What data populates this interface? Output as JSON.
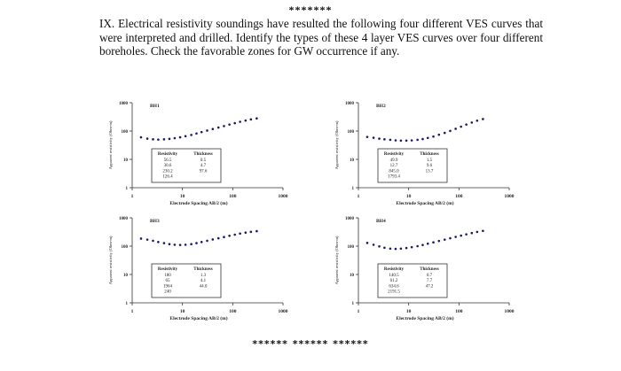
{
  "header": {
    "stars": "*******"
  },
  "question": {
    "text": "IX. Electrical resistivity soundings have resulted the following four different VES curves that were interpreted and drilled. Identify the types of these 4 layer VES curves over four different boreholes. Check the favorable zones for GW occurrence if any."
  },
  "footer": {
    "stars": "******   ******   ******"
  },
  "chart_data": [
    {
      "type": "scatter",
      "title": "BH1",
      "xlabel": "Electrode Spacing AB/2 (m)",
      "ylabel": "Apparent resistivity (Ohm-m)",
      "x_scale": "log",
      "y_scale": "log",
      "xlim": [
        1,
        1000
      ],
      "ylim": [
        1,
        1000
      ],
      "x_ticks": [
        "1",
        "10",
        "100",
        "1000"
      ],
      "y_ticks": [
        "1000",
        "100",
        "10",
        "1"
      ],
      "x": [
        1.5,
        2,
        2.6,
        3.3,
        4.3,
        5.5,
        7,
        9,
        11.5,
        15,
        19,
        24,
        31,
        40,
        52,
        67,
        86,
        110,
        140,
        180,
        230,
        300
      ],
      "y": [
        60,
        54,
        51,
        50,
        51,
        53,
        56,
        60,
        66,
        73,
        82,
        92,
        104,
        118,
        133,
        150,
        170,
        190,
        212,
        235,
        258,
        280
      ],
      "table": {
        "headers": [
          "Resistivity",
          "Thickness"
        ],
        "rows": [
          [
            "56.5",
            "0.5"
          ],
          [
            "30.6",
            "4.7"
          ],
          [
            "230.2",
            "97.6"
          ],
          [
            "126.4",
            ""
          ]
        ]
      }
    },
    {
      "type": "scatter",
      "title": "BH2",
      "xlabel": "Electrode Spacing AB/2 (m)",
      "ylabel": "Apparent resistivity (Ohm-m)",
      "x_scale": "log",
      "y_scale": "log",
      "xlim": [
        1,
        1000
      ],
      "ylim": [
        1,
        1000
      ],
      "x_ticks": [
        "1",
        "10",
        "100",
        "1000"
      ],
      "y_ticks": [
        "1000",
        "100",
        "10",
        "1"
      ],
      "x": [
        1.5,
        2,
        2.6,
        3.3,
        4.3,
        5.5,
        7,
        9,
        11.5,
        15,
        19,
        24,
        31,
        40,
        52,
        67,
        86,
        110,
        140,
        180,
        230,
        300
      ],
      "y": [
        62,
        58,
        54,
        51,
        49,
        47,
        46,
        46,
        47,
        49,
        52,
        57,
        64,
        74,
        86,
        101,
        120,
        143,
        170,
        200,
        232,
        265
      ],
      "table": {
        "headers": [
          "Resistivity",
          "Thickness"
        ],
        "rows": [
          [
            "49.9",
            "1.5"
          ],
          [
            "12.7",
            "9.6"
          ],
          [
            "845.0",
            "13.7"
          ],
          [
            "1793.4",
            ""
          ]
        ]
      }
    },
    {
      "type": "scatter",
      "title": "BH3",
      "xlabel": "Electrode Spacing AB/2 (m)",
      "ylabel": "Apparent resistivity (Ohm-m)",
      "x_scale": "log",
      "y_scale": "log",
      "xlim": [
        1,
        1000
      ],
      "ylim": [
        1,
        1000
      ],
      "x_ticks": [
        "1",
        "10",
        "100",
        "1000"
      ],
      "y_ticks": [
        "1000",
        "100",
        "10",
        "1"
      ],
      "x": [
        1.5,
        2,
        2.6,
        3.3,
        4.3,
        5.5,
        7,
        9,
        11.5,
        15,
        19,
        24,
        31,
        40,
        52,
        67,
        86,
        110,
        140,
        180,
        230,
        300
      ],
      "y": [
        185,
        170,
        155,
        140,
        128,
        118,
        112,
        110,
        112,
        118,
        128,
        140,
        155,
        172,
        190,
        210,
        232,
        255,
        278,
        300,
        320,
        338
      ],
      "table": {
        "headers": [
          "Resistivity",
          "Thickness"
        ],
        "rows": [
          [
            "180",
            "1.3"
          ],
          [
            "65",
            "4.1"
          ],
          [
            "1964",
            "44.0"
          ],
          [
            "240",
            ""
          ]
        ]
      }
    },
    {
      "type": "scatter",
      "title": "BH4",
      "xlabel": "Electrode Spacing AB/2 (m)",
      "ylabel": "Apparent resistivity (Ohm-m)",
      "x_scale": "log",
      "y_scale": "log",
      "xlim": [
        1,
        1000
      ],
      "ylim": [
        1,
        1000
      ],
      "x_ticks": [
        "1",
        "10",
        "100",
        "1000"
      ],
      "y_ticks": [
        "1000",
        "100",
        "10",
        "1"
      ],
      "x": [
        1.5,
        2,
        2.6,
        3.3,
        4.3,
        5.5,
        7,
        9,
        11.5,
        15,
        19,
        24,
        31,
        40,
        52,
        67,
        86,
        110,
        140,
        180,
        230,
        300
      ],
      "y": [
        130,
        112,
        98,
        88,
        82,
        80,
        82,
        86,
        92,
        100,
        110,
        122,
        136,
        152,
        170,
        190,
        212,
        236,
        262,
        290,
        318,
        345
      ],
      "table": {
        "headers": [
          "Resistivity",
          "Thickness"
        ],
        "rows": [
          [
            "140.5",
            "0.7"
          ],
          [
            "61.2",
            "7.7"
          ],
          [
            "634.6",
            "47.2"
          ],
          [
            "2191.5",
            ""
          ]
        ]
      }
    }
  ]
}
